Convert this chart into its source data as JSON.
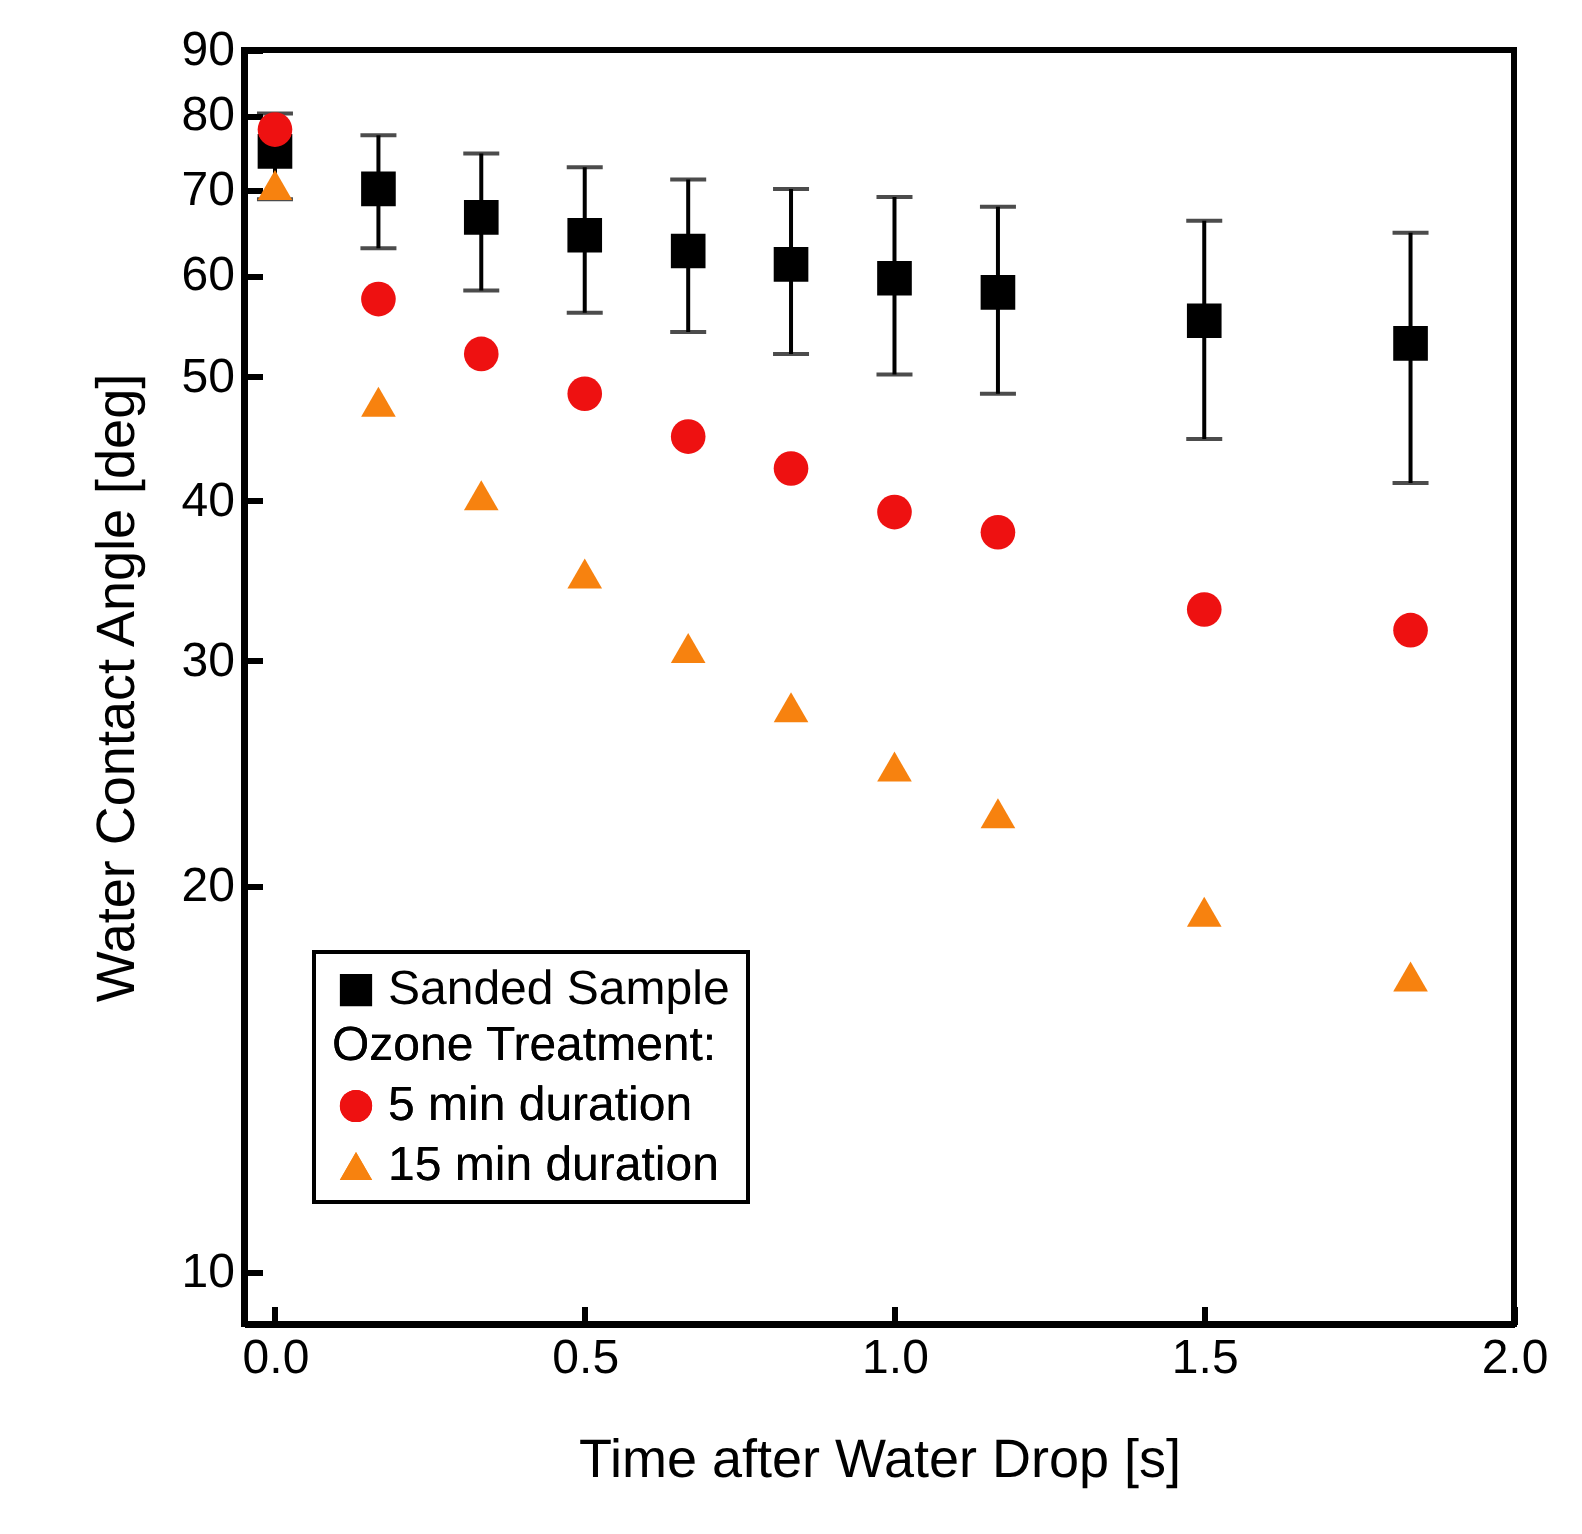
{
  "chart_data": {
    "type": "scatter",
    "xlabel": "Time after Water Drop [s]",
    "ylabel": "Water Contact Angle [deg]",
    "legend_title": "Ozone Treatment:",
    "x": [
      0,
      0.167,
      0.333,
      0.5,
      0.667,
      0.833,
      1.0,
      1.167,
      1.5,
      1.833
    ],
    "series": [
      {
        "name": "Sanded Sample",
        "color": "#000000",
        "marker": "square",
        "values": [
          75.0,
          70.1,
          66.6,
          64.5,
          62.7,
          61.2,
          59.7,
          58.2,
          55.3,
          53.1
        ],
        "errors": [
          [
            68.8,
            80.3
          ],
          [
            63.0,
            77.2
          ],
          [
            58.4,
            74.7
          ],
          [
            56.1,
            72.9
          ],
          [
            54.2,
            71.3
          ],
          [
            52.1,
            70.1
          ],
          [
            50.2,
            69.1
          ],
          [
            48.5,
            67.9
          ],
          [
            44.7,
            66.2
          ],
          [
            41.3,
            64.8
          ]
        ]
      },
      {
        "name": "5 min duration",
        "color": "#ee1111",
        "marker": "circle",
        "values": [
          78.0,
          57.5,
          52.1,
          48.5,
          44.9,
          42.4,
          39.2,
          37.8,
          32.9,
          31.7
        ]
      },
      {
        "name": "15 min duration",
        "color": "#f7820f",
        "marker": "triangle",
        "values": [
          70.6,
          47.8,
          40.4,
          35.1,
          30.7,
          27.6,
          24.8,
          22.8,
          19.1,
          17.0
        ]
      }
    ],
    "xlim": [
      -0.05,
      2.0
    ],
    "xticks": [
      {
        "value": 0,
        "label": "0.0"
      },
      0.5,
      {
        "value": 1,
        "label": "1.0"
      },
      1.5,
      {
        "value": 2,
        "label": "2.0"
      }
    ],
    "ylim": [
      9.1,
      90
    ],
    "yticks": [
      10,
      20,
      30,
      40,
      50,
      60,
      70,
      80,
      90
    ],
    "log": true,
    "grid": false,
    "legend": "bottom left"
  }
}
